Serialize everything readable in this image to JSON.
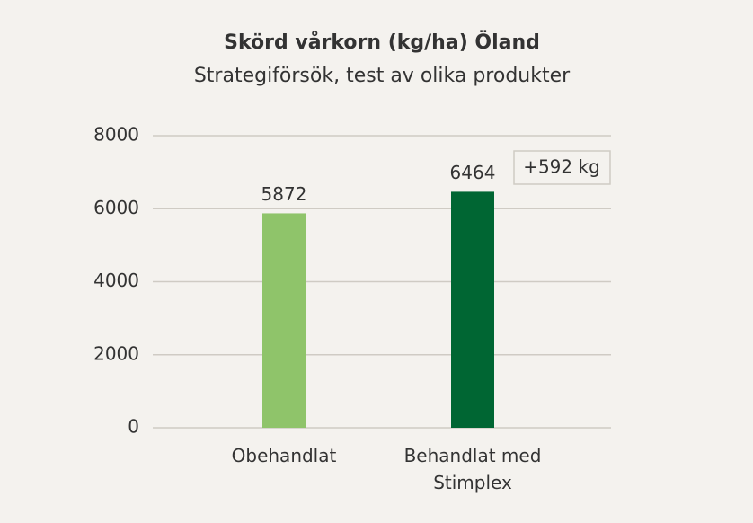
{
  "chart_data": {
    "type": "bar",
    "title": "Skörd vårkorn (kg/ha) Öland",
    "subtitle": "Strategiförsök, test av olika produkter",
    "categories": [
      "Obehandlat",
      "Behandlat med Stimplex"
    ],
    "values": [
      5872,
      6464
    ],
    "colors": [
      "#8fc46a",
      "#006633"
    ],
    "ylim": [
      0,
      8000
    ],
    "yticks": [
      0,
      2000,
      4000,
      6000,
      8000
    ],
    "grid": true,
    "annotation": "+592 kg"
  }
}
